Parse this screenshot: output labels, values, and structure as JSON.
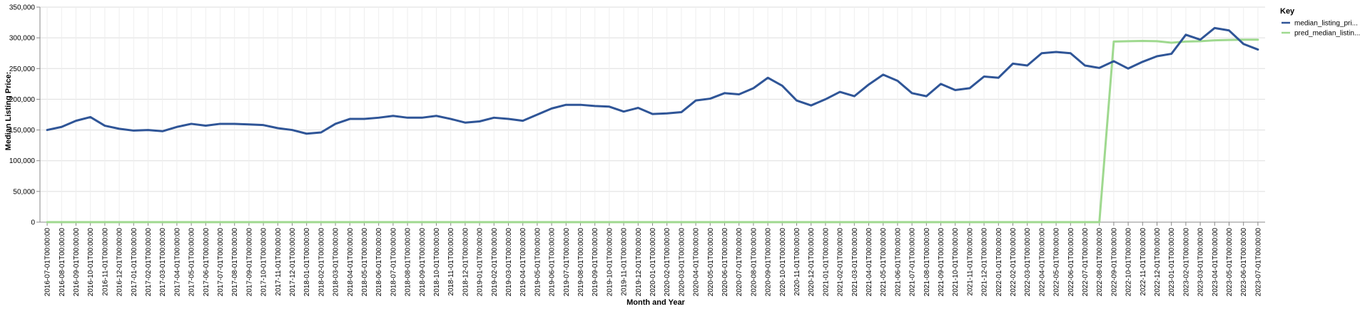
{
  "chart_data": {
    "type": "line",
    "title": "",
    "xlabel": "Month and Year",
    "ylabel": "Median Listing Price:",
    "ylim": [
      0,
      350000
    ],
    "yticks": [
      0,
      50000,
      100000,
      150000,
      200000,
      250000,
      300000,
      350000
    ],
    "ytick_labels": [
      "0",
      "50,000",
      "100,000",
      "150,000",
      "200,000",
      "250,000",
      "300,000",
      "350,000"
    ],
    "grid": true,
    "legend": {
      "title": "Key",
      "position": "top-right"
    },
    "categories": [
      "2016-07-01T00:00:00",
      "2016-08-01T00:00:00",
      "2016-09-01T00:00:00",
      "2016-10-01T00:00:00",
      "2016-11-01T00:00:00",
      "2016-12-01T00:00:00",
      "2017-01-01T00:00:00",
      "2017-02-01T00:00:00",
      "2017-03-01T00:00:00",
      "2017-04-01T00:00:00",
      "2017-05-01T00:00:00",
      "2017-06-01T00:00:00",
      "2017-07-01T00:00:00",
      "2017-08-01T00:00:00",
      "2017-09-01T00:00:00",
      "2017-10-01T00:00:00",
      "2017-11-01T00:00:00",
      "2017-12-01T00:00:00",
      "2018-01-01T00:00:00",
      "2018-02-01T00:00:00",
      "2018-03-01T00:00:00",
      "2018-04-01T00:00:00",
      "2018-05-01T00:00:00",
      "2018-06-01T00:00:00",
      "2018-07-01T00:00:00",
      "2018-08-01T00:00:00",
      "2018-09-01T00:00:00",
      "2018-10-01T00:00:00",
      "2018-11-01T00:00:00",
      "2018-12-01T00:00:00",
      "2019-01-01T00:00:00",
      "2019-02-01T00:00:00",
      "2019-03-01T00:00:00",
      "2019-04-01T00:00:00",
      "2019-05-01T00:00:00",
      "2019-06-01T00:00:00",
      "2019-07-01T00:00:00",
      "2019-08-01T00:00:00",
      "2019-09-01T00:00:00",
      "2019-10-01T00:00:00",
      "2019-11-01T00:00:00",
      "2019-12-01T00:00:00",
      "2020-01-01T00:00:00",
      "2020-02-01T00:00:00",
      "2020-03-01T00:00:00",
      "2020-04-01T00:00:00",
      "2020-05-01T00:00:00",
      "2020-06-01T00:00:00",
      "2020-07-01T00:00:00",
      "2020-08-01T00:00:00",
      "2020-09-01T00:00:00",
      "2020-10-01T00:00:00",
      "2020-11-01T00:00:00",
      "2020-12-01T00:00:00",
      "2021-01-01T00:00:00",
      "2021-02-01T00:00:00",
      "2021-03-01T00:00:00",
      "2021-04-01T00:00:00",
      "2021-05-01T00:00:00",
      "2021-06-01T00:00:00",
      "2021-07-01T00:00:00",
      "2021-08-01T00:00:00",
      "2021-09-01T00:00:00",
      "2021-10-01T00:00:00",
      "2021-11-01T00:00:00",
      "2021-12-01T00:00:00",
      "2022-01-01T00:00:00",
      "2022-02-01T00:00:00",
      "2022-03-01T00:00:00",
      "2022-04-01T00:00:00",
      "2022-05-01T00:00:00",
      "2022-06-01T00:00:00",
      "2022-07-01T00:00:00",
      "2022-08-01T00:00:00",
      "2022-09-01T00:00:00",
      "2022-10-01T00:00:00",
      "2022-11-01T00:00:00",
      "2022-12-01T00:00:00",
      "2023-01-01T00:00:00",
      "2023-02-01T00:00:00",
      "2023-03-01T00:00:00",
      "2023-04-01T00:00:00",
      "2023-05-01T00:00:00",
      "2023-06-01T00:00:00",
      "2023-07-01T00:00:00"
    ],
    "series": [
      {
        "name": "median_listing_pri...",
        "color": "#2f5597",
        "values": [
          150000,
          155000,
          165000,
          171000,
          157000,
          152000,
          149000,
          150000,
          148000,
          155000,
          160000,
          157000,
          160000,
          160000,
          159000,
          158000,
          153000,
          150000,
          144000,
          146000,
          160000,
          168000,
          168000,
          170000,
          173000,
          170000,
          170000,
          173000,
          168000,
          162000,
          164000,
          170000,
          168000,
          165000,
          175000,
          185000,
          191000,
          191000,
          189000,
          188000,
          180000,
          186000,
          176000,
          177000,
          179000,
          198000,
          201000,
          210000,
          208000,
          218000,
          235000,
          222000,
          198000,
          190000,
          200000,
          212000,
          205000,
          224000,
          240000,
          230000,
          210000,
          205000,
          225000,
          215000,
          218000,
          237000,
          235000,
          258000,
          255000,
          275000,
          277000,
          275000,
          255000,
          251000,
          262000,
          250000,
          261000,
          270000,
          274000,
          305000,
          297000,
          316000,
          312000,
          290000,
          281000
        ]
      },
      {
        "name": "pred_median_listin...",
        "color": "#9fd98f",
        "values": [
          0,
          0,
          0,
          0,
          0,
          0,
          0,
          0,
          0,
          0,
          0,
          0,
          0,
          0,
          0,
          0,
          0,
          0,
          0,
          0,
          0,
          0,
          0,
          0,
          0,
          0,
          0,
          0,
          0,
          0,
          0,
          0,
          0,
          0,
          0,
          0,
          0,
          0,
          0,
          0,
          0,
          0,
          0,
          0,
          0,
          0,
          0,
          0,
          0,
          0,
          0,
          0,
          0,
          0,
          0,
          0,
          0,
          0,
          0,
          0,
          0,
          0,
          0,
          0,
          0,
          0,
          0,
          0,
          0,
          0,
          0,
          0,
          0,
          0,
          294000,
          294500,
          295000,
          294500,
          292000,
          294000,
          294500,
          296000,
          296500,
          297000,
          297000
        ]
      }
    ]
  }
}
